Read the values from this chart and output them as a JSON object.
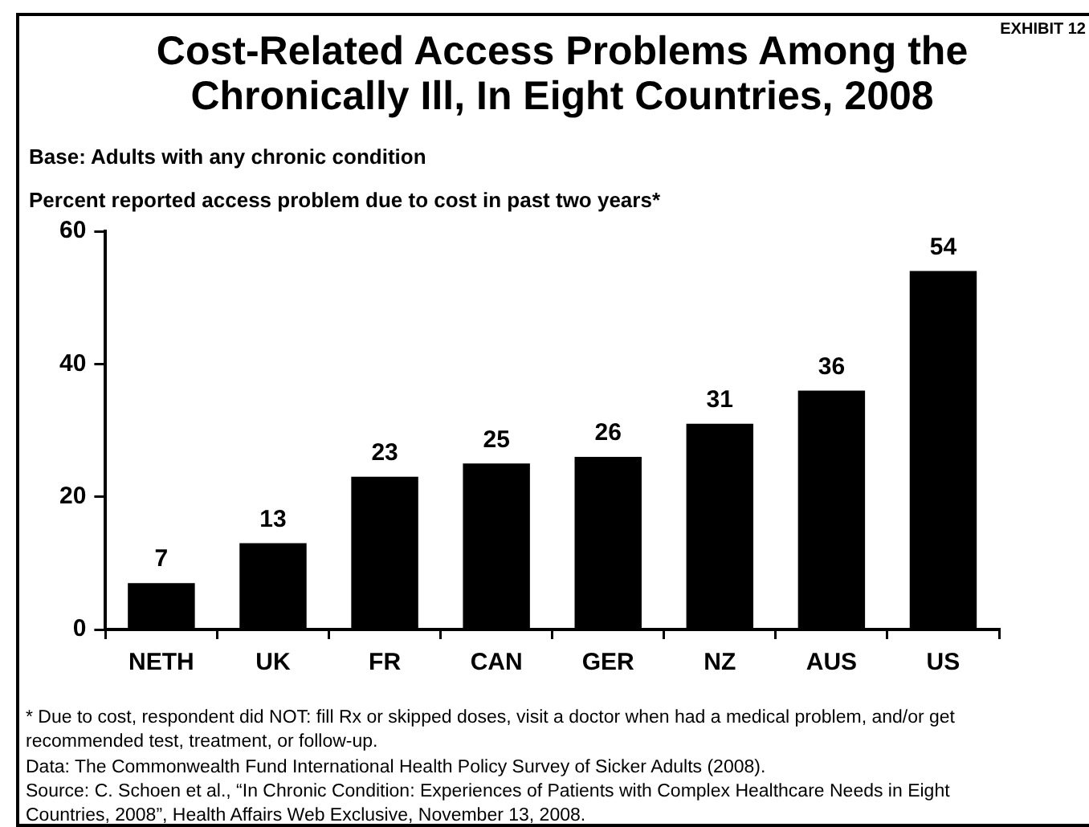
{
  "chart_data": {
    "type": "bar",
    "title": "Cost-Related Access Problems Among the Chronically Ill, In Eight Countries, 2008",
    "subtitle": "Base: Adults with any chronic condition",
    "ylabel": "Percent reported access problem due to cost in past two years*",
    "categories": [
      "NETH",
      "UK",
      "FR",
      "CAN",
      "GER",
      "NZ",
      "AUS",
      "US"
    ],
    "values": [
      7,
      13,
      23,
      25,
      26,
      31,
      36,
      54
    ],
    "color": "#000000",
    "ylim": [
      0,
      60
    ],
    "yticks": [
      0,
      20,
      40,
      60
    ],
    "data_labels": true,
    "annotations": [
      "EXHIBIT 12",
      "* Due to cost, respondent did NOT: fill Rx or skipped doses, visit a doctor when had a medical problem, and/or get recommended test, treatment, or follow-up.",
      "Data: The Commonwealth Fund International Health Policy Survey of Sicker Adults (2008).",
      "Source: C. Schoen et al., “In Chronic Condition: Experiences of Patients with Complex Healthcare Needs in Eight Countries, 2008”, Health Affairs Web Exclusive, November 13, 2008."
    ]
  }
}
